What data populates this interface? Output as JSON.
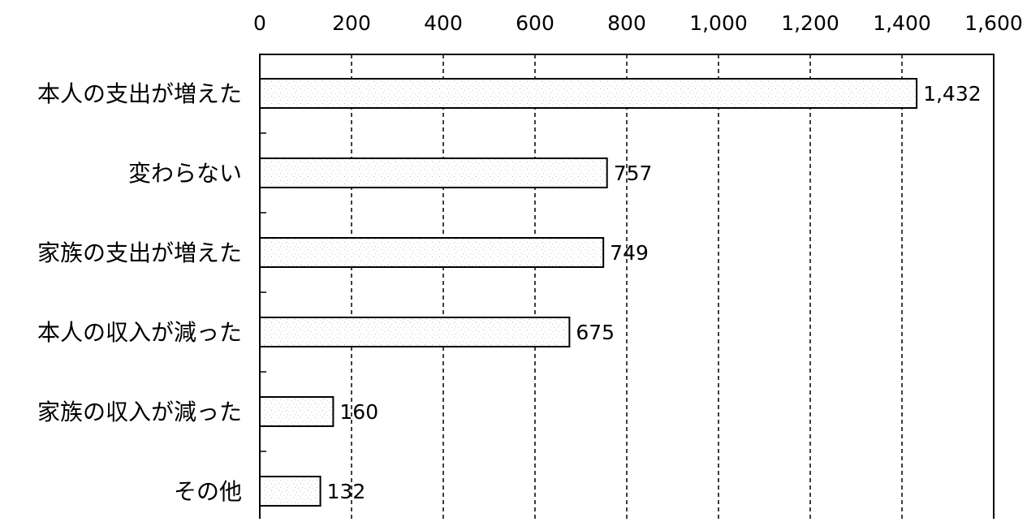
{
  "chart_data": {
    "type": "bar",
    "orientation": "horizontal",
    "categories": [
      "本人の支出が増えた",
      "変わらない",
      "家族の支出が増えた",
      "本人の収入が減った",
      "家族の収入が減った",
      "その他"
    ],
    "values": [
      1432,
      757,
      749,
      675,
      160,
      132
    ],
    "data_labels": [
      "1,432",
      "757",
      "749",
      "675",
      "160",
      "132"
    ],
    "xlim": [
      0,
      1600
    ],
    "x_ticks": [
      0,
      200,
      400,
      600,
      800,
      1000,
      1200,
      1400,
      1600
    ],
    "x_tick_labels": [
      "0",
      "200",
      "400",
      "600",
      "800",
      "1,000",
      "1,200",
      "1,400",
      "1,600"
    ],
    "x_axis_position": "top",
    "grid": "vertical-dashed",
    "title": "",
    "xlabel": "",
    "ylabel": ""
  },
  "colors": {
    "background": "#ffffff",
    "bar_fill": "#ffffff",
    "bar_texture": "#b8b8b8",
    "bar_stroke": "#000000",
    "axis": "#000000",
    "grid": "#000000",
    "text": "#000000"
  }
}
